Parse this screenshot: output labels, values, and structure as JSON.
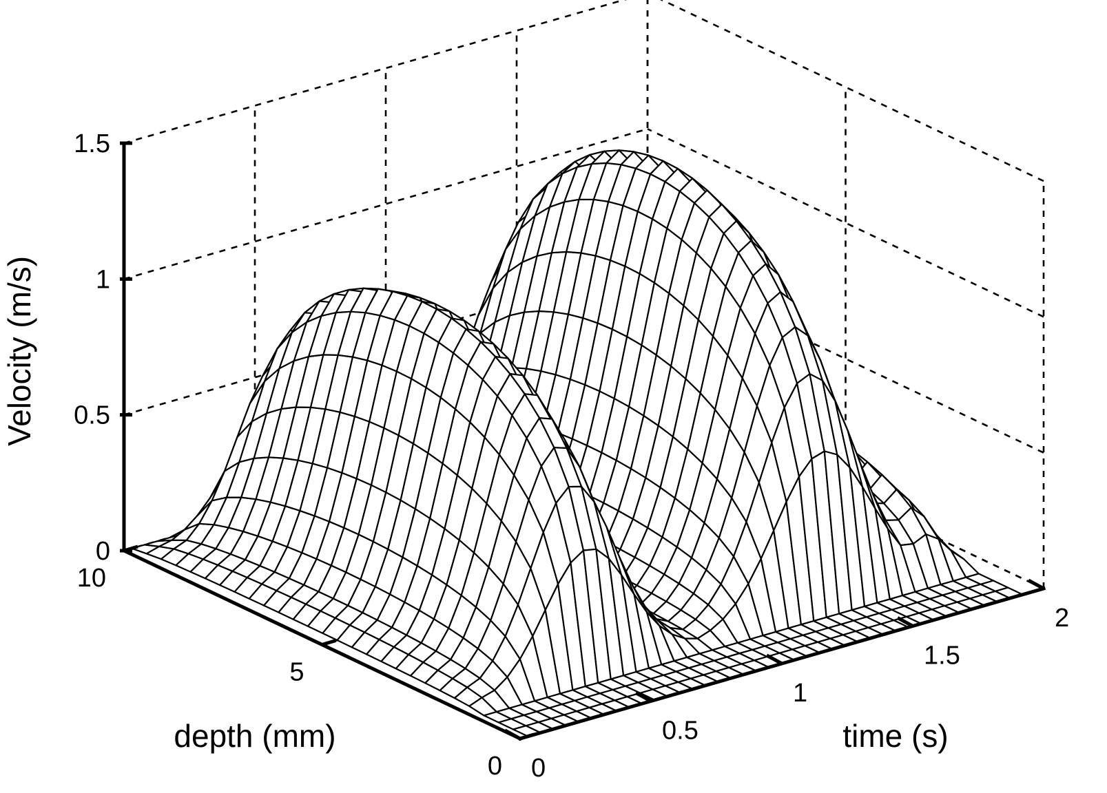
{
  "chart_data": {
    "type": "surface",
    "title": "",
    "xlabel": "time (s)",
    "ylabel": "depth (mm)",
    "zlabel": "Velocity (m/s)",
    "xlim": [
      0,
      2
    ],
    "ylim": [
      0,
      10
    ],
    "zlim": [
      0,
      1.5
    ],
    "x_ticks": [
      {
        "value": 0,
        "label": "0"
      },
      {
        "value": 0.5,
        "label": "0.5"
      },
      {
        "value": 1,
        "label": "1"
      },
      {
        "value": 1.5,
        "label": "1.5"
      },
      {
        "value": 2,
        "label": "2"
      }
    ],
    "y_ticks": [
      {
        "value": 0,
        "label": "0"
      },
      {
        "value": 5,
        "label": "5"
      },
      {
        "value": 10,
        "label": "10"
      }
    ],
    "z_ticks": [
      {
        "value": 0,
        "label": "0"
      },
      {
        "value": 0.5,
        "label": "0.5"
      },
      {
        "value": 1,
        "label": "1"
      },
      {
        "value": 1.5,
        "label": "1.5"
      }
    ],
    "grid": true,
    "style": "wireframe mesh, white faces, black edges",
    "surface": {
      "time_points": 40,
      "time_range": [
        0.03,
        1.92
      ],
      "depth_points": 28,
      "depth_range": [
        0,
        10
      ],
      "peaks": [
        {
          "time": 0.12,
          "velocity": 0.09,
          "width": 0.05
        },
        {
          "time": 0.48,
          "velocity": 1.1,
          "width": 0.16
        },
        {
          "time": 1.38,
          "velocity": 1.36,
          "width": 0.18
        },
        {
          "time": 1.77,
          "velocity": 0.38,
          "width": 0.08
        }
      ],
      "profile_center_depth": 5.5,
      "profile_half_width_depth": 4.2,
      "velocity_max": 1.36,
      "velocity_min": 0
    }
  }
}
